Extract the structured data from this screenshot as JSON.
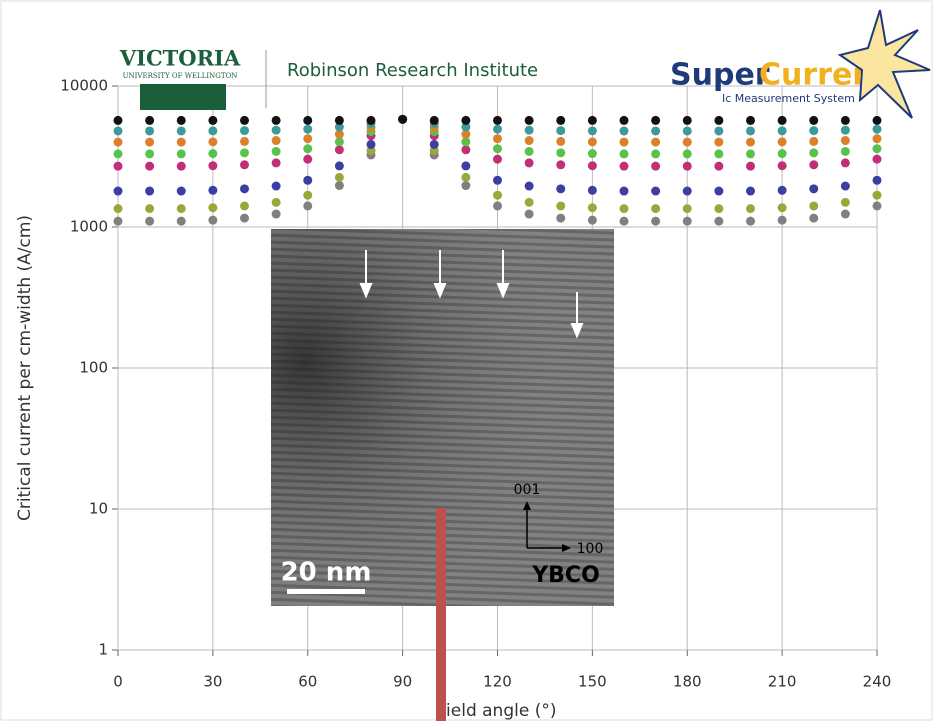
{
  "chart_data": {
    "type": "scatter",
    "header": {
      "org": "VICTORIA",
      "org_sub": "UNIVERSITY OF WELLINGTON",
      "institute": "Robinson Research Institute",
      "brand_a": "Super",
      "brand_b": "Current",
      "brand_sub": "Ic Measurement System"
    },
    "ylabel": "Critical current per cm-width (A/cm)",
    "xlabel": "Field angle (°)",
    "inset": {
      "scale": "20 nm",
      "material": "YBCO",
      "axis_a": "001",
      "axis_b": "100"
    },
    "log_y": true,
    "grid": true,
    "xlim": [
      0,
      240
    ],
    "xticks": [
      0,
      30,
      60,
      90,
      120,
      150,
      180,
      210,
      240
    ],
    "ylim": [
      1,
      10000
    ],
    "yticks": [
      1,
      10,
      100,
      1000,
      10000
    ],
    "x": [
      0,
      10,
      20,
      30,
      40,
      50,
      60,
      70,
      80,
      90,
      100,
      110,
      120,
      130,
      140,
      150,
      160,
      170,
      180,
      190,
      200,
      210,
      220,
      230,
      240
    ],
    "series": [
      {
        "color": "#111111",
        "values": [
          5700,
          5700,
          5700,
          5700,
          5700,
          5700,
          5700,
          5700,
          5700,
          5800,
          5700,
          5700,
          5700,
          5700,
          5700,
          5700,
          5700,
          5700,
          5700,
          5700,
          5700,
          5700,
          5700,
          5700,
          5700
        ]
      },
      {
        "color": "#3a9a9c",
        "values": [
          4800,
          4800,
          4800,
          4809,
          4827,
          4864,
          4939,
          5127,
          5429,
          5800,
          5429,
          5127,
          4939,
          4864,
          4827,
          4809,
          4800,
          4800,
          4800,
          4800,
          4800,
          4809,
          4827,
          4864,
          4939
        ]
      },
      {
        "color": "#d9822b",
        "values": [
          4000,
          4000,
          4000,
          4015,
          4045,
          4105,
          4229,
          4555,
          5092,
          5800,
          5092,
          4555,
          4229,
          4105,
          4045,
          4015,
          4000,
          4000,
          4000,
          4000,
          4000,
          4015,
          4045,
          4105,
          4229
        ]
      },
      {
        "color": "#59c24a",
        "values": [
          3300,
          3300,
          3300,
          3319,
          3356,
          3432,
          3591,
          4020,
          4761,
          5800,
          4761,
          4020,
          3591,
          3432,
          3356,
          3319,
          3300,
          3300,
          3300,
          3300,
          3300,
          3319,
          3356,
          3432,
          3591
        ]
      },
      {
        "color": "#c0307a",
        "values": [
          2700,
          2700,
          2700,
          2721,
          2762,
          2849,
          3028,
          3528,
          4438,
          5800,
          4438,
          3528,
          3028,
          2849,
          2762,
          2721,
          2700,
          2700,
          2700,
          2700,
          2700,
          2721,
          2762,
          2849,
          3028
        ]
      },
      {
        "color": "#3b3fa0",
        "values": [
          1800,
          1800,
          1800,
          1821,
          1864,
          1953,
          2145,
          2711,
          3851,
          5800,
          3851,
          2711,
          2145,
          1953,
          1864,
          1821,
          1800,
          1800,
          1800,
          1800,
          1800,
          1821,
          1864,
          1953,
          2145
        ]
      },
      {
        "color": "#9aa83a",
        "values": [
          1350,
          1350,
          1350,
          1370,
          1410,
          1495,
          1680,
          2249,
          3482,
          5800,
          3482,
          2249,
          1680,
          1495,
          1410,
          1370,
          1350,
          1350,
          1350,
          1350,
          1350,
          1370,
          1410,
          1495,
          1680
        ]
      },
      {
        "color": "#808080",
        "values": [
          1100,
          1100,
          1100,
          1118,
          1156,
          1236,
          1411,
          1968,
          3241,
          5800,
          3241,
          1968,
          1411,
          1236,
          1156,
          1118,
          1100,
          1100,
          1100,
          1100,
          1100,
          1118,
          1156,
          1236,
          1411
        ]
      }
    ]
  }
}
